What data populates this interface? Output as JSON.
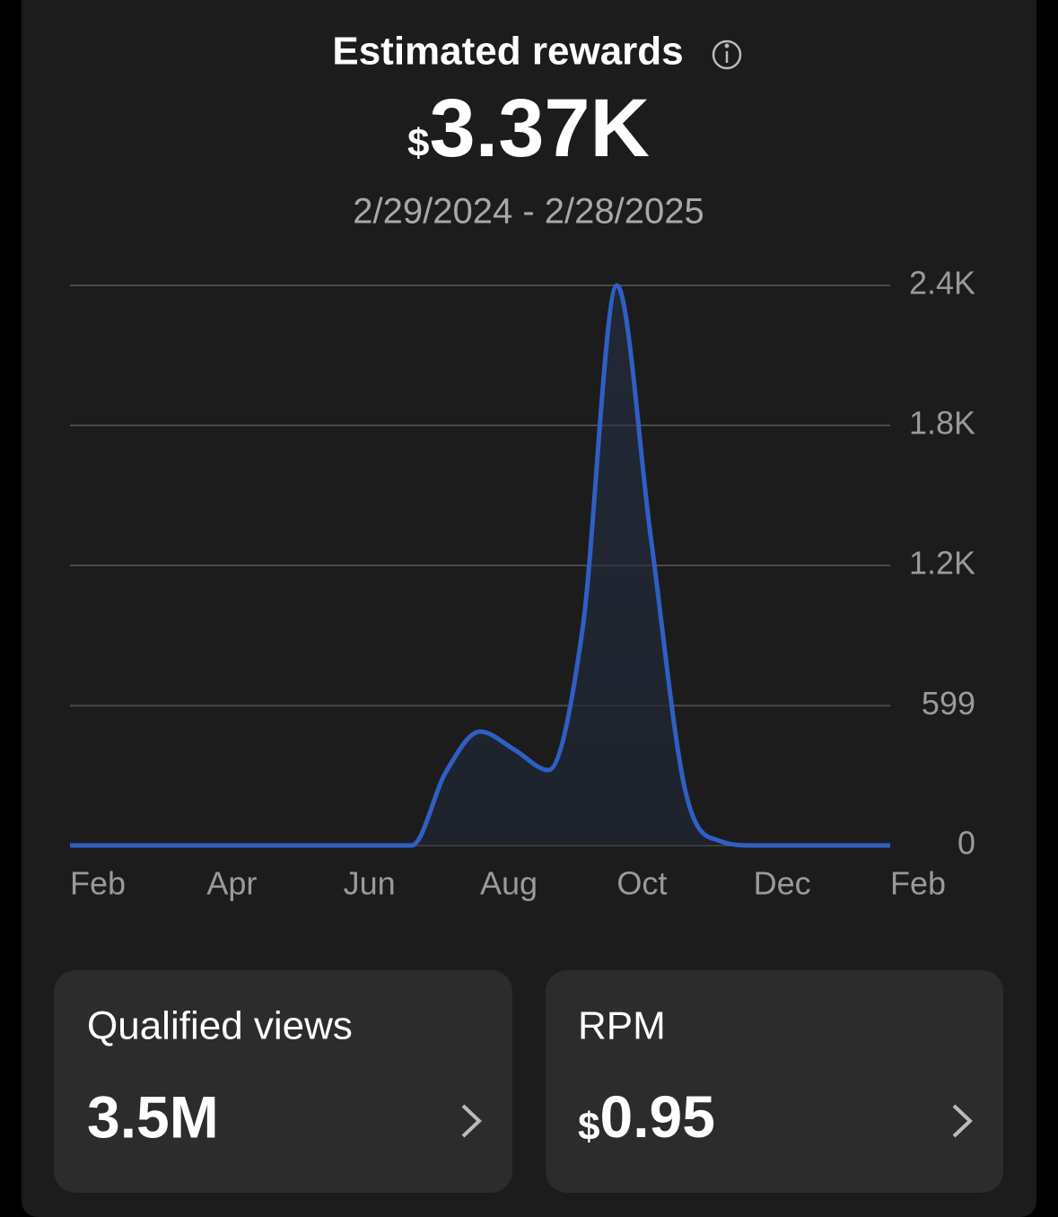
{
  "header": {
    "title": "Estimated rewards",
    "currency": "$",
    "total": "3.37K",
    "date_range": "2/29/2024 - 2/28/2025"
  },
  "chart_data": {
    "type": "line",
    "x": [
      0,
      0.5,
      1,
      1.5,
      2,
      2.5,
      3,
      3.5,
      4,
      4.5,
      5,
      5.5,
      6,
      6.5,
      7,
      7.5,
      8,
      8.5,
      9,
      9.5,
      10,
      10.5,
      11,
      11.5,
      12
    ],
    "values": [
      0,
      0,
      0,
      0,
      0,
      0,
      0,
      0,
      0,
      0,
      0,
      315,
      488,
      411,
      323,
      930,
      2400,
      1315,
      238,
      20,
      0,
      0,
      0,
      0,
      0
    ],
    "color": "#2f5fc4",
    "xlim": [
      0,
      12
    ],
    "xticks": [
      {
        "value": 0,
        "label": "Feb"
      },
      {
        "value": 2,
        "label": "Apr"
      },
      {
        "value": 4,
        "label": "Jun"
      },
      {
        "value": 6,
        "label": "Aug"
      },
      {
        "value": 8,
        "label": "Oct"
      },
      {
        "value": 10,
        "label": "Dec"
      },
      {
        "value": 12,
        "label": "Feb"
      }
    ],
    "ylim": [
      0,
      2400
    ],
    "yticks": [
      0,
      599,
      {
        "value": 1200,
        "label": "1.2K"
      },
      {
        "value": 1800,
        "label": "1.8K"
      },
      {
        "value": 2400,
        "label": "2.4K"
      }
    ],
    "grid": true
  },
  "cards": [
    {
      "label": "Qualified views",
      "value": "3.5M"
    },
    {
      "label": "RPM",
      "currency": "$",
      "value": "0.95"
    }
  ]
}
